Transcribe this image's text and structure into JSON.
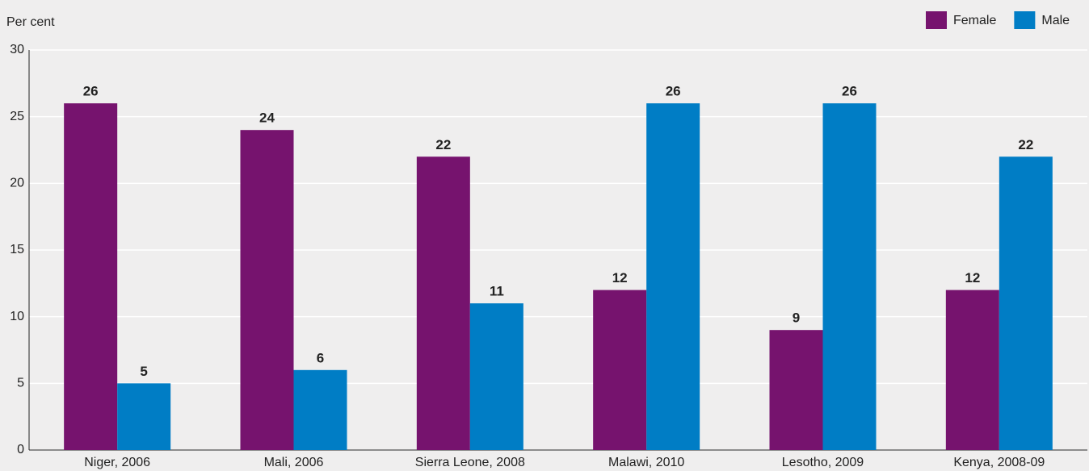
{
  "chart_data": {
    "type": "bar",
    "y_label": "Per cent",
    "categories": [
      "Niger, 2006",
      "Mali, 2006",
      "Sierra Leone, 2008",
      "Malawi, 2010",
      "Lesotho, 2009",
      "Kenya, 2008-09"
    ],
    "series": [
      {
        "name": "Female",
        "color": "#76136e",
        "values": [
          26,
          24,
          22,
          12,
          9,
          12
        ]
      },
      {
        "name": "Male",
        "color": "#007dc5",
        "values": [
          5,
          6,
          11,
          26,
          26,
          22
        ]
      }
    ],
    "ylim": [
      0,
      30
    ],
    "yticks": [
      0,
      5,
      10,
      15,
      20,
      25,
      30
    ],
    "grid": true,
    "legend": "top-right"
  }
}
